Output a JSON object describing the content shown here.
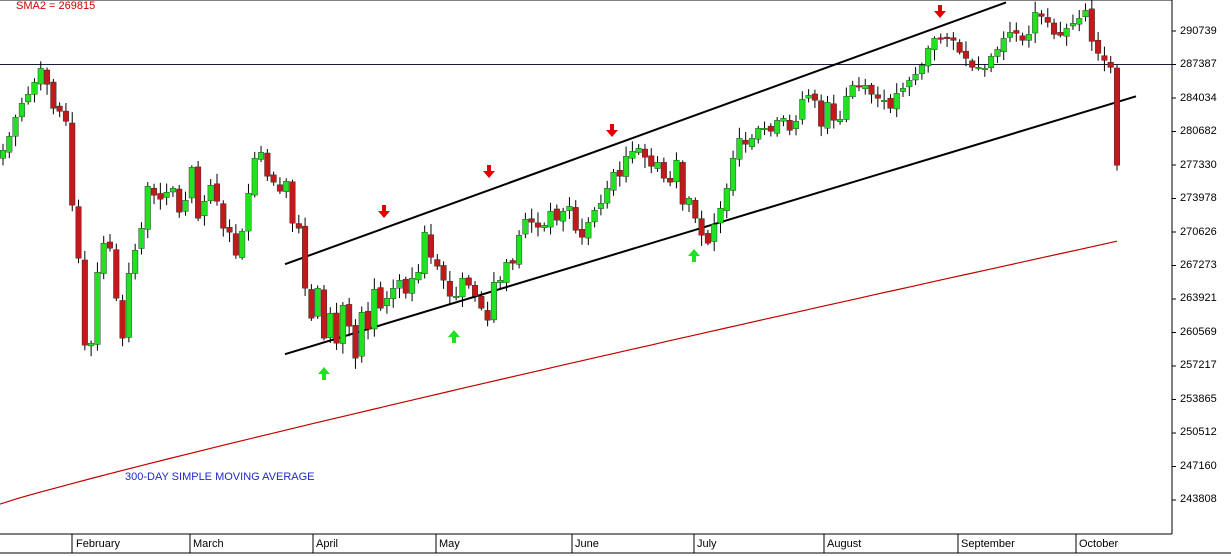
{
  "chart_data": {
    "type": "candlestick",
    "sma_label": "SMA2 = 269815",
    "annotation": "300-DAY SIMPLE MOVING AVERAGE",
    "y_ticks": [
      290739,
      287387,
      284034,
      280682,
      277330,
      273978,
      270626,
      267273,
      263921,
      260569,
      257217,
      253865,
      250512,
      247160,
      243808
    ],
    "ylim": [
      243000,
      291500
    ],
    "x_ticks": [
      "February",
      "March",
      "April",
      "May",
      "June",
      "July",
      "August",
      "September",
      "October"
    ],
    "horizontal_line": 287387,
    "sma_300_endpoints": {
      "start": 243400,
      "end": 269700
    },
    "channel_upper": {
      "start": 267400,
      "end": 293600
    },
    "channel_lower": {
      "start": 258400,
      "end": 284200
    },
    "sell_signals": [
      "April",
      "May",
      "June",
      "September"
    ],
    "buy_signals": [
      "April",
      "May",
      "July"
    ],
    "colors": {
      "up": "#22e022",
      "down": "#c21a1a",
      "sma": "#c00000",
      "channel": "#000000",
      "up_arrow": "#22e022",
      "down_arrow": "#e00000",
      "annotation": "#1f28c8"
    },
    "closes": [
      278800,
      280200,
      282100,
      283500,
      284400,
      285600,
      287000,
      285400,
      283000,
      282700,
      281700,
      273300,
      268000,
      259300,
      259500,
      266600,
      269500,
      269000,
      264000,
      260000,
      266500,
      268800,
      271000,
      275200,
      274300,
      273900,
      274600,
      275000,
      272600,
      273800,
      277100,
      272000,
      273700,
      275300,
      273700,
      271000,
      270600,
      268300,
      270700,
      274500,
      278000,
      278600,
      276200,
      275600,
      274700,
      275700,
      271500,
      271000,
      265000,
      262000,
      265000,
      260000,
      262500,
      259500,
      263300,
      261200,
      258000,
      262600,
      260900,
      264900,
      263000,
      264000,
      265000,
      265800,
      264500,
      266000,
      266600,
      270600,
      268100,
      267200,
      265800,
      264200,
      264200,
      266000,
      265300,
      264200,
      263000,
      261800,
      265600,
      265800,
      267600,
      267500,
      270300,
      271900,
      271600,
      271100,
      271300,
      272700,
      271800,
      272700,
      273200,
      270800,
      270100,
      271600,
      272800,
      273500,
      275000,
      276600,
      276200,
      278200,
      278700,
      279000,
      278100,
      277200,
      277600,
      276000,
      275600,
      277800,
      273400,
      274000,
      272000,
      270300,
      269500,
      271400,
      273000,
      275000,
      278000,
      280000,
      279400,
      280000,
      281000,
      281000,
      280700,
      281800,
      282000,
      280800,
      281700,
      283900,
      284300,
      283800,
      281200,
      283600,
      281800,
      281900,
      284200,
      285300,
      285200,
      285300,
      284400,
      284000,
      283800,
      283000,
      284500,
      285000,
      285800,
      286400,
      287300,
      289000,
      290000,
      289900,
      290000,
      289800,
      288600,
      288000,
      287100,
      287100,
      287000,
      288200,
      288900,
      290000,
      290600,
      290500,
      289800,
      290400,
      292600,
      292200,
      291600,
      290400,
      290300,
      291000,
      291500,
      292000,
      292800,
      289700,
      288500,
      287800,
      287100,
      277300
    ]
  }
}
